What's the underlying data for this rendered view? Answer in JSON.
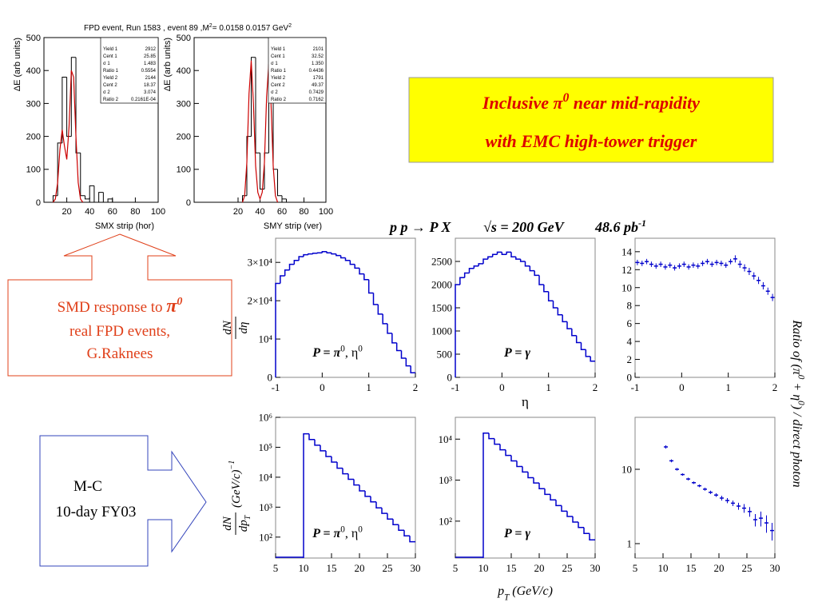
{
  "chart_data": [
    {
      "type": "histogram",
      "title": [
        "FPD event, Run 1583 , event 89 ,M",
        "2",
        "=  0.0158   0.0157 GeV",
        "2"
      ],
      "xlabel": "SMX strip (hor)",
      "ylabel": "ΔE (arb units)",
      "bins": [
        0,
        4,
        8,
        12,
        16,
        20,
        24,
        28,
        32,
        36,
        40,
        44,
        48,
        52,
        56,
        60,
        64,
        68,
        72,
        76,
        80,
        84,
        88,
        92,
        96,
        100
      ],
      "values": [
        0,
        0,
        20,
        180,
        380,
        200,
        440,
        150,
        20,
        10,
        50,
        0,
        30,
        0,
        10,
        0,
        0,
        0,
        0,
        0,
        0,
        0,
        0,
        0,
        0
      ],
      "color": "#000000",
      "fit_x": [
        8,
        10,
        12,
        14,
        16,
        18,
        20,
        22,
        24,
        26,
        28,
        30,
        32,
        34
      ],
      "fit_values": [
        0,
        10,
        60,
        160,
        220,
        170,
        130,
        230,
        400,
        380,
        200,
        60,
        10,
        0
      ],
      "fit_color": "#cc0000",
      "stats": [
        [
          "Yield 1",
          "2912"
        ],
        [
          "Cent 1",
          "25.85"
        ],
        [
          "σ 1",
          "1.483"
        ],
        [
          "Ratio 1",
          "0.5554"
        ],
        [
          "Yield 2",
          "2144"
        ],
        [
          "Cent 2",
          "18.37"
        ],
        [
          "σ 2",
          "3.074"
        ],
        [
          "Ratio 2",
          "0.2161E-04"
        ]
      ],
      "xlim": [
        0,
        100
      ],
      "xticks": [
        20,
        40,
        60,
        80,
        100
      ],
      "ylim": [
        0,
        500
      ],
      "yticks": [
        0,
        100,
        200,
        300,
        400,
        500
      ]
    },
    {
      "type": "histogram",
      "xlabel": "SMY strip (ver)",
      "ylabel": "ΔE (arb units)",
      "bins": [
        0,
        4,
        8,
        12,
        16,
        20,
        24,
        28,
        32,
        36,
        40,
        44,
        48,
        52,
        56,
        60,
        64,
        68,
        72,
        76,
        80,
        84,
        88,
        92,
        96,
        100
      ],
      "values": [
        0,
        0,
        0,
        0,
        0,
        0,
        20,
        200,
        440,
        150,
        40,
        150,
        470,
        100,
        20,
        10,
        0,
        0,
        0,
        0,
        0,
        0,
        0,
        0,
        0
      ],
      "color": "#000000",
      "fit_x": [
        24,
        26,
        28,
        30,
        32,
        34,
        36,
        38,
        40,
        42,
        44,
        46,
        48,
        50,
        52,
        54,
        56
      ],
      "fit_values": [
        0,
        20,
        120,
        330,
        430,
        300,
        110,
        30,
        10,
        30,
        120,
        320,
        420,
        300,
        110,
        20,
        0
      ],
      "fit_color": "#cc0000",
      "stats": [
        [
          "Yield 1",
          "2101"
        ],
        [
          "Cent 1",
          "32.52"
        ],
        [
          "σ 1",
          "1.350"
        ],
        [
          "Ratio 1",
          "0.4436"
        ],
        [
          "Yield 2",
          "1791"
        ],
        [
          "Cent 2",
          "49.37"
        ],
        [
          "σ 2",
          "0.7429"
        ],
        [
          "Ratio 2",
          "0.7162"
        ]
      ],
      "xlim": [
        -20,
        100
      ],
      "xticks": [
        20,
        40,
        60,
        80,
        100
      ],
      "ylim": [
        0,
        500
      ],
      "yticks": [
        0,
        100,
        200,
        300,
        400,
        500
      ]
    },
    {
      "type": "histogram",
      "ylabel": [
        "dN",
        "dη"
      ],
      "annotation": [
        "P = π",
        "0",
        ", η",
        "0"
      ],
      "bins": [
        -1,
        -0.9,
        -0.8,
        -0.7,
        -0.6,
        -0.5,
        -0.4,
        -0.3,
        -0.2,
        -0.1,
        0,
        0.1,
        0.2,
        0.3,
        0.4,
        0.5,
        0.6,
        0.7,
        0.8,
        0.9,
        1,
        1.1,
        1.2,
        1.3,
        1.4,
        1.5,
        1.6,
        1.7,
        1.8,
        1.9,
        2
      ],
      "values": [
        24500,
        26500,
        28000,
        29500,
        30500,
        31500,
        32000,
        32200,
        32400,
        32500,
        32800,
        32500,
        32200,
        31800,
        31200,
        30500,
        29500,
        28500,
        27000,
        25500,
        22000,
        19000,
        16500,
        14000,
        11500,
        9000,
        7000,
        5000,
        3000,
        1200
      ],
      "color": "#0000cc",
      "xlim": [
        -1,
        2
      ],
      "xticks": [
        -1,
        0,
        1,
        2
      ],
      "ylim": [
        0,
        36300
      ],
      "yticks": [
        0,
        {
          "value": 10000,
          "label": "10⁴"
        },
        {
          "value": 20000,
          "label": "2×10⁴"
        },
        {
          "value": 30000,
          "label": "3×10⁴"
        }
      ]
    },
    {
      "type": "histogram",
      "xlabel": "η",
      "annotation": [
        "P = γ"
      ],
      "bins": [
        -1,
        -0.9,
        -0.8,
        -0.7,
        -0.6,
        -0.5,
        -0.4,
        -0.3,
        -0.2,
        -0.1,
        0,
        0.1,
        0.2,
        0.3,
        0.4,
        0.5,
        0.6,
        0.7,
        0.8,
        0.9,
        1,
        1.1,
        1.2,
        1.3,
        1.4,
        1.5,
        1.6,
        1.7,
        1.8,
        1.9,
        2
      ],
      "values": [
        2000,
        2150,
        2250,
        2350,
        2400,
        2450,
        2550,
        2600,
        2650,
        2700,
        2650,
        2700,
        2600,
        2550,
        2500,
        2400,
        2300,
        2200,
        2000,
        1850,
        1650,
        1500,
        1350,
        1200,
        1050,
        900,
        750,
        600,
        450,
        350
      ],
      "color": "#0000cc",
      "xlim": [
        -1,
        2
      ],
      "xticks": [
        -1,
        0,
        1,
        2
      ],
      "ylim": [
        0,
        3000
      ],
      "yticks": [
        0,
        500,
        1000,
        1500,
        2000,
        2500
      ]
    },
    {
      "type": "scatter",
      "ylabel": [
        "Ratio of (π",
        "0",
        " + η",
        "0",
        ") / direct photon"
      ],
      "x": [
        -0.95,
        -0.85,
        -0.75,
        -0.65,
        -0.55,
        -0.45,
        -0.35,
        -0.25,
        -0.15,
        -0.05,
        0.05,
        0.15,
        0.25,
        0.35,
        0.45,
        0.55,
        0.65,
        0.75,
        0.85,
        0.95,
        1.05,
        1.15,
        1.25,
        1.35,
        1.45,
        1.55,
        1.65,
        1.75,
        1.85,
        1.95
      ],
      "values": [
        12.8,
        12.7,
        12.9,
        12.6,
        12.4,
        12.6,
        12.3,
        12.5,
        12.2,
        12.4,
        12.6,
        12.3,
        12.5,
        12.4,
        12.7,
        12.9,
        12.6,
        12.8,
        12.7,
        12.5,
        12.9,
        13.2,
        12.6,
        12.2,
        11.8,
        11.3,
        10.8,
        10.2,
        9.6,
        8.9
      ],
      "errors": [
        0.3,
        0.3,
        0.3,
        0.3,
        0.3,
        0.3,
        0.3,
        0.3,
        0.3,
        0.3,
        0.3,
        0.3,
        0.3,
        0.3,
        0.3,
        0.3,
        0.3,
        0.3,
        0.3,
        0.3,
        0.3,
        0.4,
        0.4,
        0.4,
        0.4,
        0.4,
        0.4,
        0.4,
        0.4,
        0.4
      ],
      "color": "#0000cc",
      "xlim": [
        -1,
        2
      ],
      "xticks": [
        -1,
        0,
        1,
        2
      ],
      "ylim": [
        0,
        15.5
      ],
      "yticks": [
        0,
        2,
        4,
        6,
        8,
        10,
        12,
        14
      ]
    },
    {
      "type": "histogram",
      "log_y": true,
      "ylabel": [
        "dN",
        "dp",
        "T",
        "(GeV/c)",
        "−1"
      ],
      "annotation": [
        "P = π",
        "0",
        ", η",
        "0"
      ],
      "bins": [
        10,
        11,
        12,
        13,
        14,
        15,
        16,
        17,
        18,
        19,
        20,
        21,
        22,
        23,
        24,
        25,
        26,
        27,
        28,
        29,
        30
      ],
      "values": [
        282000,
        182000,
        117000,
        76000,
        49000,
        32000,
        20000,
        13000,
        8500,
        5500,
        3500,
        2300,
        1500,
        950,
        620,
        400,
        260,
        170,
        110,
        70
      ],
      "color": "#0000cc",
      "xlim": [
        5,
        30
      ],
      "xticks": [
        5,
        10,
        15,
        20,
        25,
        30
      ],
      "ylim": [
        20,
        1000000
      ],
      "yticks": [
        {
          "value": 100,
          "label": "10²"
        },
        {
          "value": 1000,
          "label": "10³"
        },
        {
          "value": 10000,
          "label": "10⁴"
        },
        {
          "value": 100000,
          "label": "10⁵"
        },
        {
          "value": 1000000,
          "label": "10⁶"
        }
      ]
    },
    {
      "type": "histogram",
      "log_y": true,
      "xlabel": [
        "p",
        "T",
        " (GeV/c)"
      ],
      "annotation": [
        "P = γ"
      ],
      "bins": [
        10,
        11,
        12,
        13,
        14,
        15,
        16,
        17,
        18,
        19,
        20,
        21,
        22,
        23,
        24,
        25,
        26,
        27,
        28,
        29,
        30
      ],
      "values": [
        14000,
        10300,
        7500,
        5500,
        4000,
        2950,
        2150,
        1580,
        1150,
        850,
        620,
        450,
        330,
        240,
        175,
        130,
        95,
        70,
        50,
        35
      ],
      "color": "#0000cc",
      "xlim": [
        5,
        30
      ],
      "xticks": [
        5,
        10,
        15,
        20,
        25,
        30
      ],
      "ylim": [
        12.6,
        34000
      ],
      "yticks": [
        {
          "value": 100,
          "label": "10²"
        },
        {
          "value": 1000,
          "label": "10³"
        },
        {
          "value": 10000,
          "label": "10⁴"
        }
      ]
    },
    {
      "type": "scatter",
      "log_y": true,
      "x": [
        10.5,
        11.5,
        12.5,
        13.5,
        14.5,
        15.5,
        16.5,
        17.5,
        18.5,
        19.5,
        20.5,
        21.5,
        22.5,
        23.5,
        24.5,
        25.5,
        26.5,
        27.5,
        28.5,
        29.5
      ],
      "values": [
        20,
        13,
        10,
        8.5,
        7.4,
        6.6,
        6,
        5.4,
        4.9,
        4.5,
        4.1,
        3.8,
        3.5,
        3.2,
        3,
        2.7,
        2.1,
        2.2,
        1.9,
        1.5
      ],
      "errors": [
        1,
        0.6,
        0.4,
        0.3,
        0.3,
        0.25,
        0.25,
        0.25,
        0.25,
        0.25,
        0.3,
        0.3,
        0.3,
        0.35,
        0.4,
        0.4,
        0.4,
        0.5,
        0.5,
        0.4
      ],
      "color": "#0000cc",
      "xlim": [
        5,
        30
      ],
      "xticks": [
        5,
        10,
        15,
        20,
        25,
        30
      ],
      "ylim": [
        0.64,
        50
      ],
      "yticks": [
        1,
        10
      ]
    }
  ],
  "slide": {
    "headline": [
      [
        "Inclusive π",
        "0",
        " near mid-rapidity"
      ],
      [
        "with EMC high-tower trigger"
      ]
    ],
    "reaction": [
      "p p → P X",
      "√s = 200 GeV",
      "48.6 pb",
      "-1"
    ],
    "smd_note": [
      "SMD response to ",
      "π",
      "0",
      "real FPD events,",
      "G.Raknees"
    ],
    "mc_note": [
      "M-C",
      "10-day FY03"
    ]
  }
}
